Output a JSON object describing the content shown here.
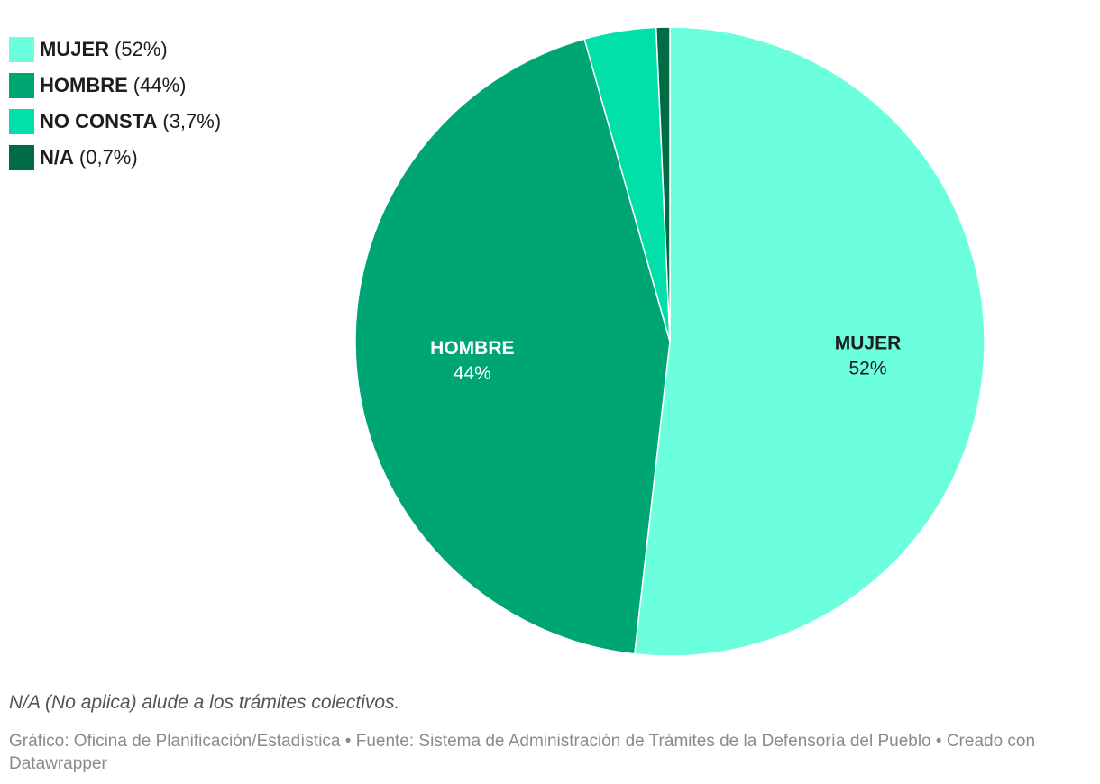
{
  "chart_data": {
    "type": "pie",
    "slices": [
      {
        "label": "MUJER",
        "value": 52,
        "value_text": "52%",
        "legend_value": "(52%)",
        "color": "#6cffdd",
        "label_color": "#1d1d1d",
        "show_label": true
      },
      {
        "label": "HOMBRE",
        "value": 44,
        "value_text": "44%",
        "legend_value": "(44%)",
        "color": "#00a574",
        "label_color": "#ffffff",
        "show_label": true
      },
      {
        "label": "NO CONSTA",
        "value": 3.7,
        "value_text": "3,7%",
        "legend_value": "(3,7%)",
        "color": "#00e0a8",
        "label_color": "#1d1d1d",
        "show_label": false
      },
      {
        "label": "N/A",
        "value": 0.7,
        "value_text": "0,7%",
        "legend_value": "(0,7%)",
        "color": "#006c45",
        "label_color": "#ffffff",
        "show_label": false
      }
    ],
    "legend_position": "top-left"
  },
  "footnote": "N/A (No aplica) alude a los trámites colectivos.",
  "credits": "Gráfico: Oficina de Planificación/Estadística • Fuente: Sistema de Administración de Trámites de la Defensoría del Pueblo • Creado con Datawrapper"
}
